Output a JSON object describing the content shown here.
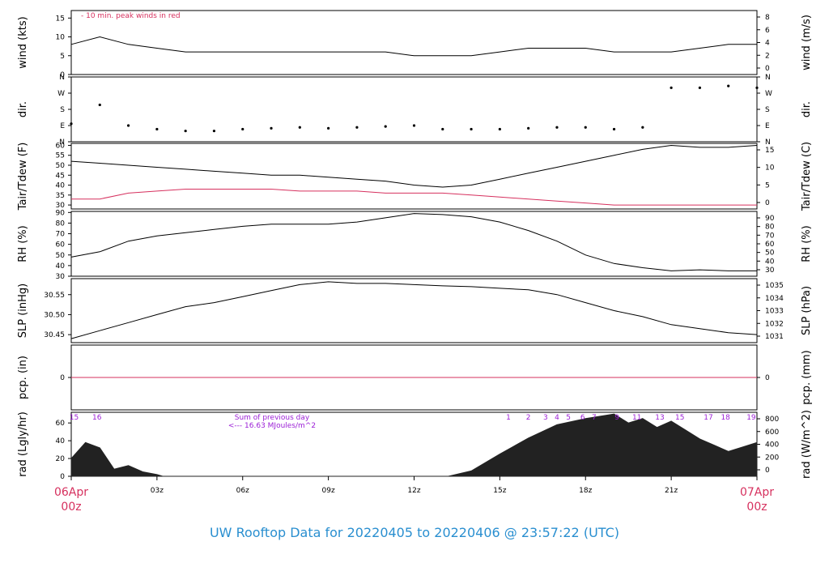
{
  "title": "UW Rooftop Data for 20220405  to  20220406 @ 23:57:22  (UTC)",
  "colors": {
    "accent": "#d6305e",
    "title": "#2a8fd0",
    "purple": "#9b1fd6",
    "line": "#000000",
    "dew": "#d6305e",
    "bar": "#222222"
  },
  "x_axis": {
    "ticks": [
      "03z",
      "06z",
      "09z",
      "12z",
      "15z",
      "18z",
      "21z"
    ],
    "start_label_top": "06Apr",
    "start_label_bottom": "00z",
    "end_label_top": "07Apr",
    "end_label_bottom": "00z"
  },
  "chart_data": [
    {
      "type": "line",
      "name": "wind",
      "ylabel_left": "wind (kts)",
      "ylabel_right": "wind (m/s)",
      "annotation": "- 10 min. peak winds in red",
      "ylim": [
        0,
        17
      ],
      "yticks_left": [
        "0",
        "5",
        "10",
        "15"
      ],
      "yticks_right": [
        "0",
        "2",
        "4",
        "6",
        "8"
      ],
      "x": [
        0,
        1,
        2,
        3,
        4,
        5,
        6,
        7,
        8,
        9,
        10,
        11,
        12,
        13,
        14,
        15,
        16,
        17,
        18,
        19,
        20,
        21,
        22,
        23,
        24
      ],
      "values": [
        8,
        10,
        8,
        7,
        6,
        6,
        6,
        6,
        6,
        6,
        6,
        6,
        5,
        5,
        5,
        6,
        7,
        7,
        7,
        6,
        6,
        6,
        7,
        8,
        8
      ]
    },
    {
      "type": "scatter",
      "name": "dir",
      "ylabel_left": "dir.",
      "ylabel_right": "dir.",
      "yticks_left": [
        "N",
        "E",
        "S",
        "W",
        "N"
      ],
      "yticks_right": [
        "N",
        "E",
        "S",
        "W",
        "N"
      ],
      "ylim": [
        0,
        360
      ],
      "x": [
        0,
        1,
        2,
        3,
        4,
        5,
        6,
        7,
        8,
        9,
        10,
        11,
        12,
        13,
        14,
        15,
        16,
        17,
        18,
        19,
        20,
        21,
        22,
        23,
        24
      ],
      "values": [
        100,
        205,
        90,
        70,
        60,
        60,
        70,
        75,
        80,
        75,
        80,
        85,
        90,
        70,
        70,
        70,
        75,
        80,
        80,
        70,
        80,
        300,
        300,
        310,
        300
      ]
    },
    {
      "type": "line",
      "name": "temp",
      "ylabel_left": "Tair/Tdew (F)",
      "ylabel_right": "Tair/Tdew (C)",
      "ylim": [
        28,
        61
      ],
      "yticks_left": [
        "30",
        "35",
        "40",
        "45",
        "50",
        "55",
        "60"
      ],
      "yticks_right": [
        "0",
        "5",
        "10",
        "15"
      ],
      "x": [
        0,
        1,
        2,
        3,
        4,
        5,
        6,
        7,
        8,
        9,
        10,
        11,
        12,
        13,
        14,
        15,
        16,
        17,
        18,
        19,
        20,
        21,
        22,
        23,
        24
      ],
      "series": [
        {
          "values": [
            52,
            51,
            50,
            49,
            48,
            47,
            46,
            45,
            45,
            44,
            43,
            42,
            40,
            39,
            40,
            43,
            46,
            49,
            52,
            55,
            58,
            60,
            59,
            59,
            60
          ]
        },
        {
          "values": [
            33,
            33,
            36,
            37,
            38,
            38,
            38,
            38,
            37,
            37,
            37,
            36,
            36,
            36,
            35,
            34,
            33,
            32,
            31,
            30,
            30,
            30,
            30,
            30,
            30
          ]
        }
      ]
    },
    {
      "type": "line",
      "name": "rh",
      "ylabel_left": "RH (%)",
      "ylabel_right": "RH (%)",
      "ylim": [
        30,
        91
      ],
      "yticks_left": [
        "30",
        "40",
        "50",
        "60",
        "70",
        "80",
        "90"
      ],
      "yticks_right": [
        "30",
        "40",
        "50",
        "60",
        "70",
        "80",
        "90"
      ],
      "x": [
        0,
        1,
        2,
        3,
        4,
        5,
        6,
        7,
        8,
        9,
        10,
        11,
        12,
        13,
        14,
        15,
        16,
        17,
        18,
        19,
        20,
        21,
        22,
        23,
        24
      ],
      "values": [
        48,
        53,
        63,
        68,
        71,
        74,
        77,
        79,
        79,
        79,
        81,
        85,
        89,
        88,
        86,
        81,
        73,
        63,
        50,
        42,
        38,
        35,
        36,
        35,
        35
      ]
    },
    {
      "type": "line",
      "name": "slp",
      "ylabel_left": "SLP (inHg)",
      "ylabel_right": "SLP (hPa)",
      "ylim": [
        30.43,
        30.59
      ],
      "yticks_left": [
        "30.45",
        "30.50",
        "30.55"
      ],
      "yticks_right": [
        "1031",
        "1032",
        "1033",
        "1034",
        "1035"
      ],
      "x": [
        0,
        1,
        2,
        3,
        4,
        5,
        6,
        7,
        8,
        9,
        10,
        11,
        12,
        13,
        14,
        15,
        16,
        17,
        18,
        19,
        20,
        21,
        22,
        23,
        24
      ],
      "values": [
        30.44,
        30.46,
        30.48,
        30.5,
        30.52,
        30.53,
        30.545,
        30.56,
        30.575,
        30.582,
        30.578,
        30.578,
        30.575,
        30.572,
        30.57,
        30.566,
        30.562,
        30.55,
        30.53,
        30.51,
        30.495,
        30.475,
        30.465,
        30.455,
        30.45
      ]
    },
    {
      "type": "line",
      "name": "pcp",
      "ylabel_left": "pcp. (in)",
      "ylabel_right": "pcp. (mm)",
      "ylim": [
        -1,
        1
      ],
      "yticks_left": [
        "0"
      ],
      "yticks_right": [
        "0"
      ],
      "x": [
        0,
        24
      ],
      "values": [
        0,
        0
      ]
    },
    {
      "type": "area",
      "name": "rad",
      "ylabel_left": "rad (Lgly/hr)",
      "ylabel_right": "rad (W/m^2)",
      "ylim": [
        0,
        72
      ],
      "yticks_left": [
        "0",
        "20",
        "40",
        "60"
      ],
      "yticks_right": [
        "0",
        "200",
        "400",
        "600",
        "800"
      ],
      "annotation_1": "Sum of previous day",
      "annotation_2": "<--- 16.63 MJoules/m^2",
      "local_hours": [
        "15",
        "16",
        "1",
        "2",
        "3",
        "4",
        "5",
        "6",
        "7",
        "9",
        "11",
        "13",
        "15",
        "17",
        "18",
        "19"
      ],
      "local_hours_x": [
        0.1,
        0.9,
        15.3,
        16,
        16.6,
        17,
        17.4,
        17.9,
        18.3,
        19.1,
        19.8,
        20.6,
        21.3,
        22.3,
        22.9,
        23.8
      ],
      "x": [
        0,
        0.5,
        1,
        1.5,
        2,
        2.5,
        3,
        3.2,
        13.2,
        14,
        15,
        16,
        17,
        18,
        19,
        19.5,
        20,
        20.5,
        21,
        21.5,
        22,
        22.5,
        23,
        23.5,
        24
      ],
      "values": [
        20,
        38,
        32,
        8,
        12,
        5,
        2,
        0,
        0,
        6,
        25,
        43,
        58,
        65,
        70,
        60,
        65,
        55,
        62,
        52,
        42,
        35,
        28,
        33,
        38
      ]
    }
  ]
}
